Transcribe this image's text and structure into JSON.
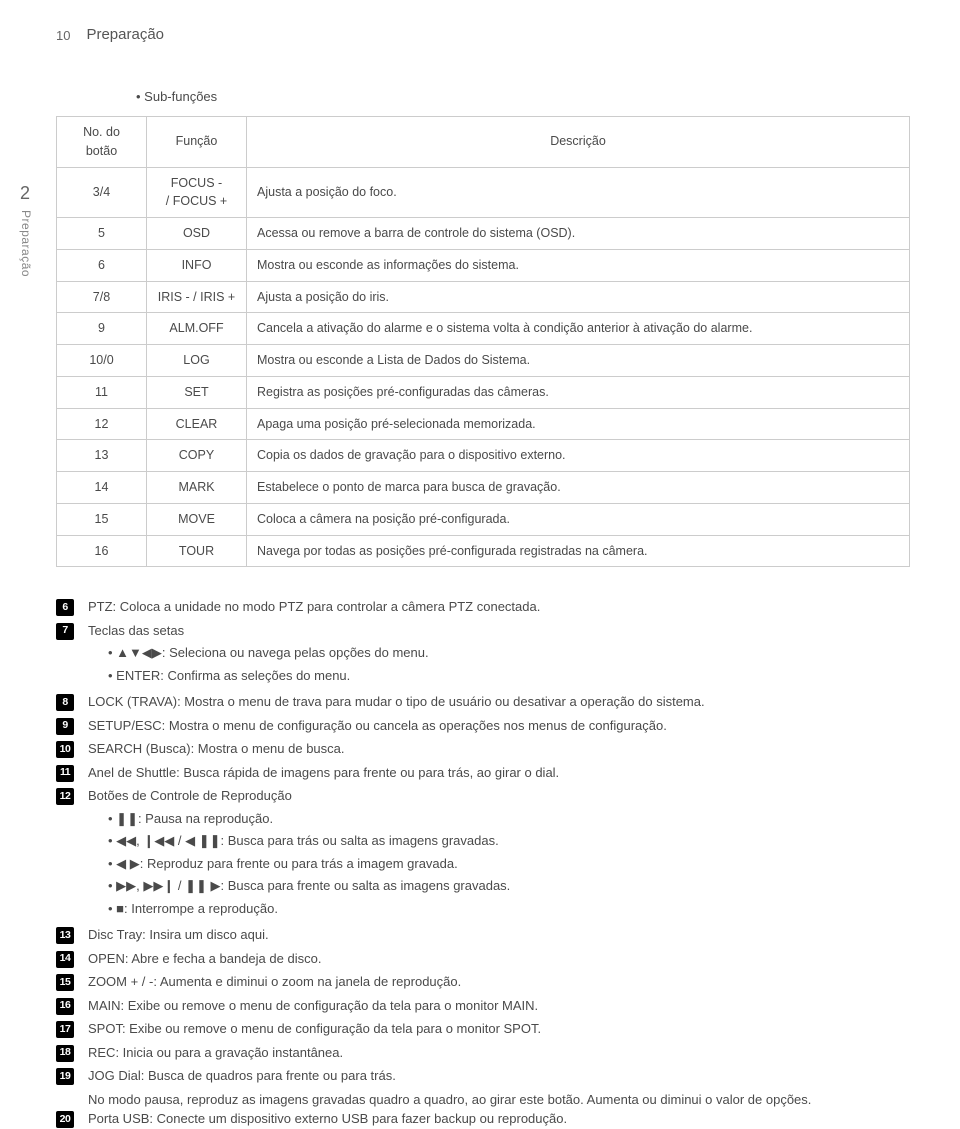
{
  "header": {
    "pageNumber": "10",
    "title": "Preparação"
  },
  "sidebar": {
    "tab": "2",
    "label": "Preparação"
  },
  "subfunctions": {
    "heading": "Sub-funções",
    "cols": [
      "No. do botão",
      "Função",
      "Descrição"
    ],
    "rows": [
      {
        "no": "3/4",
        "fn": "FOCUS -\n/ FOCUS +",
        "desc": "Ajusta a posição do foco."
      },
      {
        "no": "5",
        "fn": "OSD",
        "desc": "Acessa ou remove a barra de controle do sistema (OSD)."
      },
      {
        "no": "6",
        "fn": "INFO",
        "desc": "Mostra ou esconde as informações do sistema."
      },
      {
        "no": "7/8",
        "fn": "IRIS - / IRIS +",
        "desc": "Ajusta a posição do iris."
      },
      {
        "no": "9",
        "fn": "ALM.OFF",
        "desc": "Cancela a ativação do alarme e o sistema volta à condição anterior à ativação do alarme."
      },
      {
        "no": "10/0",
        "fn": "LOG",
        "desc": "Mostra ou esconde a Lista de Dados do Sistema."
      },
      {
        "no": "11",
        "fn": "SET",
        "desc": "Registra as posições pré-configuradas das câmeras."
      },
      {
        "no": "12",
        "fn": "CLEAR",
        "desc": "Apaga uma posição pré-selecionada memorizada."
      },
      {
        "no": "13",
        "fn": "COPY",
        "desc": "Copia os dados de gravação para o dispositivo externo."
      },
      {
        "no": "14",
        "fn": "MARK",
        "desc": "Estabelece o ponto de marca para busca de gravação."
      },
      {
        "no": "15",
        "fn": "MOVE",
        "desc": "Coloca a câmera na posição pré-configurada."
      },
      {
        "no": "16",
        "fn": "TOUR",
        "desc": "Navega por todas as posições pré-configurada registradas na câmera."
      }
    ]
  },
  "items": {
    "6": {
      "text": "PTZ: Coloca a unidade no modo PTZ para controlar a câmera PTZ conectada."
    },
    "7": {
      "text": "Teclas das setas",
      "subs": [
        "▲▼◀▶: Seleciona ou navega pelas opções do menu.",
        "ENTER: Confirma as seleções do menu."
      ]
    },
    "8": {
      "text": "LOCK (TRAVA): Mostra o menu de trava para mudar o tipo de usuário ou desativar a operação do sistema."
    },
    "9": {
      "text": "SETUP/ESC: Mostra o menu de configuração ou cancela as operações nos menus de configuração."
    },
    "10": {
      "text": "SEARCH (Busca): Mostra o menu de busca."
    },
    "11": {
      "text": "Anel de Shuttle: Busca rápida de imagens para frente ou para trás, ao girar o dial."
    },
    "12": {
      "text": "Botões de Controle de Reprodução",
      "subs": [
        "❚❚: Pausa na reprodução.",
        "◀◀, ❙◀◀ / ◀ ❚❚: Busca para trás ou salta as imagens gravadas.",
        "◀ ▶: Reproduz para frente ou para trás a imagem gravada.",
        "▶▶, ▶▶❙ / ❚❚ ▶: Busca para frente ou salta as imagens gravadas.",
        "■: Interrompe a reprodução."
      ]
    },
    "13": {
      "text": "Disc Tray: Insira um disco aqui."
    },
    "14": {
      "text": "OPEN: Abre e fecha a bandeja de disco."
    },
    "15": {
      "text": "ZOOM + / -: Aumenta e diminui o zoom na janela de reprodução."
    },
    "16": {
      "text": "MAIN: Exibe ou remove o menu de configuração da tela para o monitor MAIN."
    },
    "17": {
      "text": "SPOT: Exibe ou remove o menu de configuração da tela para o monitor SPOT."
    },
    "18": {
      "text": "REC: Inicia ou para a gravação instantânea."
    },
    "19": {
      "text": "JOG Dial: Busca de quadros para frente ou para trás.",
      "after": "No modo pausa, reproduz as imagens gravadas quadro a quadro, ao girar este botão. Aumenta ou diminui o valor de opções."
    },
    "20": {
      "text": "Porta USB: Conecte um dispositivo externo USB para fazer backup ou reprodução."
    }
  }
}
